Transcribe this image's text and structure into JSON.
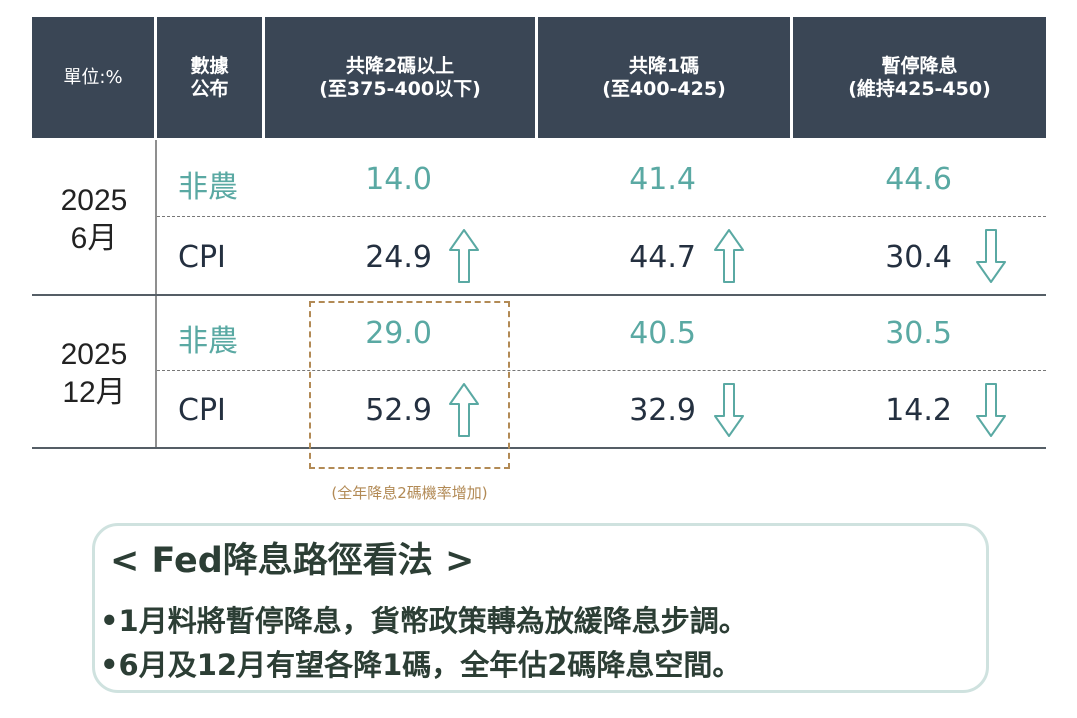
{
  "header": {
    "unit": "單位:%",
    "data_release": [
      "數據",
      "公布"
    ],
    "cols": [
      {
        "line1": "共降2碼以上",
        "line2": "(至375-400以下)"
      },
      {
        "line1": "共降1碼",
        "line2": "(至400-425)"
      },
      {
        "line1": "暫停降息",
        "line2": "(維持425-450)"
      }
    ]
  },
  "groups": [
    {
      "period_year": "2025",
      "period_month": "6月",
      "rows": [
        {
          "label": "非農",
          "values": [
            "14.0",
            "41.4",
            "44.6"
          ],
          "arrows": [
            "",
            "",
            ""
          ]
        },
        {
          "label": "CPI",
          "values": [
            "24.9",
            "44.7",
            "30.4"
          ],
          "arrows": [
            "up",
            "up",
            "down"
          ]
        }
      ]
    },
    {
      "period_year": "2025",
      "period_month": "12月",
      "rows": [
        {
          "label": "非農",
          "values": [
            "29.0",
            "40.5",
            "30.5"
          ],
          "arrows": [
            "",
            "",
            ""
          ]
        },
        {
          "label": "CPI",
          "values": [
            "52.9",
            "32.9",
            "14.2"
          ],
          "arrows": [
            "up",
            "down",
            "down"
          ]
        }
      ]
    }
  ],
  "highlight_note": "(全年降息2碼機率增加)",
  "outlook": {
    "title": "< Fed降息路徑看法 >",
    "bullets": [
      "•1月料將暫停降息，貨幣政策轉為放緩降息步調。",
      "•6月及12月有望各降1碼，全年估2碼降息空間。"
    ]
  },
  "colors": {
    "header_bg": "#3a4655",
    "nfp_text": "#5aa9a3",
    "arrow_stroke": "#5aa9a3",
    "highlight_border": "#b28a55",
    "panel_border": "#cfe2df"
  }
}
